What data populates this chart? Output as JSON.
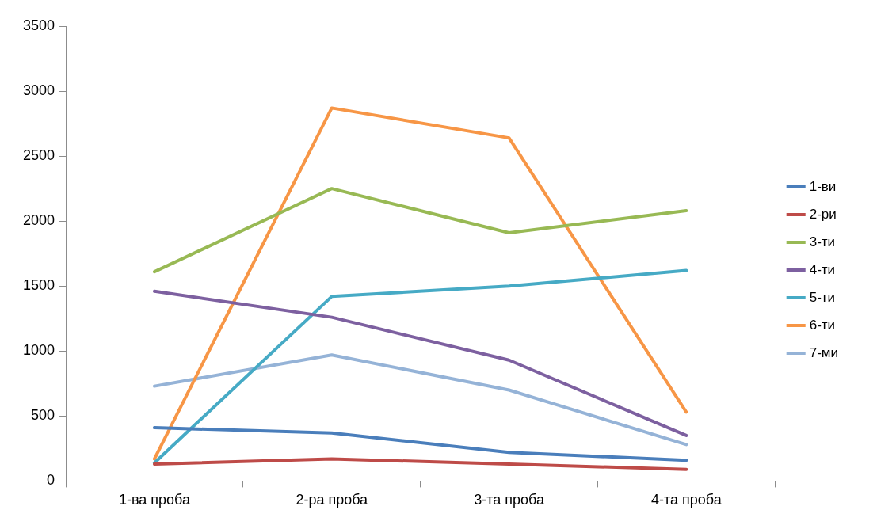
{
  "chart_data": {
    "type": "line",
    "categories": [
      "1-ва проба",
      "2-ра проба",
      "3-та проба",
      "4-та проба"
    ],
    "series": [
      {
        "name": "1-ви",
        "color": "#4a7ebb",
        "values": [
          410,
          370,
          220,
          160
        ]
      },
      {
        "name": "2-ри",
        "color": "#be4b48",
        "values": [
          130,
          170,
          130,
          90
        ]
      },
      {
        "name": "3-ти",
        "color": "#98b954",
        "values": [
          1610,
          2250,
          1910,
          2080
        ]
      },
      {
        "name": "4-ти",
        "color": "#7d60a0",
        "values": [
          1460,
          1260,
          930,
          350
        ]
      },
      {
        "name": "5-ти",
        "color": "#46aac5",
        "values": [
          140,
          1420,
          1500,
          1620
        ]
      },
      {
        "name": "6-ти",
        "color": "#f79646",
        "values": [
          170,
          2870,
          2640,
          530
        ]
      },
      {
        "name": "7-ми",
        "color": "#95b3d7",
        "values": [
          730,
          970,
          700,
          280
        ]
      }
    ],
    "ylim": [
      0,
      3500
    ],
    "yticks": [
      0,
      500,
      1000,
      1500,
      2000,
      2500,
      3000,
      3500
    ],
    "grid": false,
    "legend": "right",
    "marker": "none",
    "line_style": "solid"
  }
}
